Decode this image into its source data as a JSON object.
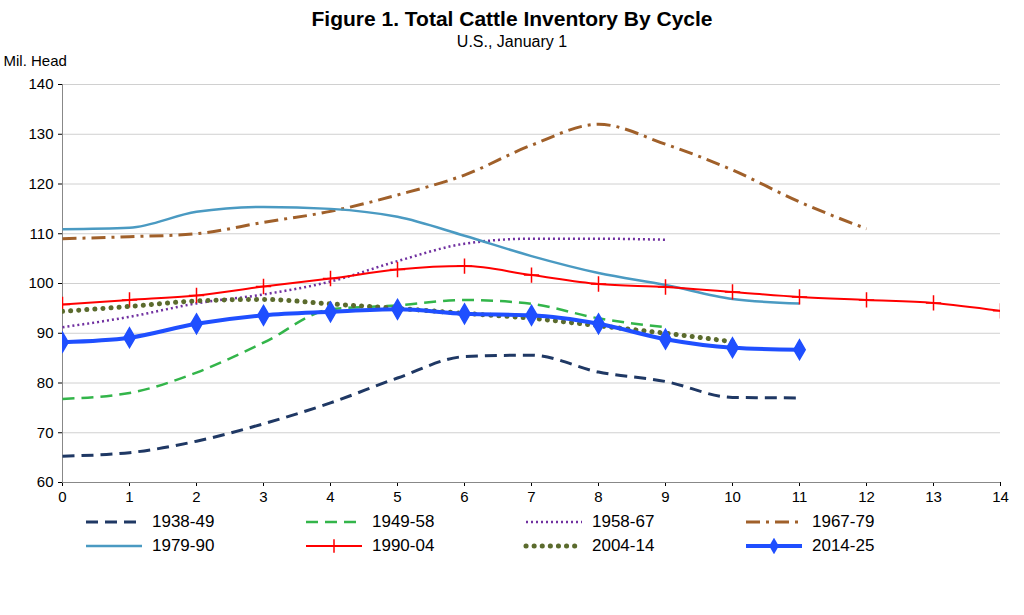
{
  "chart_data": {
    "type": "line",
    "title": "Figure 1. Total Cattle Inventory By Cycle",
    "subtitle": "U.S., January 1",
    "y_label": "Mil. Head",
    "x": [
      0,
      1,
      2,
      3,
      4,
      5,
      6,
      7,
      8,
      9,
      10,
      11,
      12,
      13,
      14
    ],
    "xlim": [
      0,
      14
    ],
    "xticks": [
      0,
      1,
      2,
      3,
      4,
      5,
      6,
      7,
      8,
      9,
      10,
      11,
      12,
      13,
      14
    ],
    "ylim": [
      60,
      140
    ],
    "yticks": [
      60,
      70,
      80,
      90,
      100,
      110,
      120,
      130,
      140
    ],
    "grid": true,
    "legend": "bottom",
    "series": [
      {
        "name": "1938-49",
        "color": "#1f3864",
        "line_style": "dashed",
        "marker": "none",
        "values": [
          65.3,
          66,
          68.3,
          71.8,
          76,
          81,
          85.3,
          85.6,
          82.2,
          80.3,
          77.1,
          77,
          null,
          null,
          null
        ]
      },
      {
        "name": "1949-58",
        "color": "#33b54a",
        "line_style": "dashed",
        "marker": "none",
        "values": [
          76.8,
          78,
          82.1,
          88.1,
          94.8,
          95.6,
          96.7,
          95.9,
          93,
          91.2,
          null,
          null,
          null,
          null,
          null
        ]
      },
      {
        "name": "1958-67",
        "color": "#7030a0",
        "line_style": "dotted",
        "marker": "none",
        "values": [
          91.2,
          93.3,
          96,
          97.8,
          100.4,
          104.5,
          108,
          109,
          109,
          108.8,
          null,
          null,
          null,
          null,
          null
        ]
      },
      {
        "name": "1967-79",
        "color": "#a0602a",
        "line_style": "dashdot",
        "marker": "none",
        "values": [
          109,
          109.4,
          110,
          112.3,
          114.5,
          117.8,
          121.8,
          127.8,
          132,
          128,
          122.8,
          116.4,
          111,
          null,
          null
        ]
      },
      {
        "name": "1979-90",
        "color": "#4a9ac2",
        "line_style": "solid",
        "marker": "none",
        "values": [
          110.9,
          111.2,
          114.4,
          115.4,
          115,
          113.4,
          109.6,
          105.5,
          102.1,
          99.7,
          96.9,
          96,
          null,
          null,
          null
        ]
      },
      {
        "name": "1990-04",
        "color": "#ff0000",
        "line_style": "solid",
        "marker": "plus",
        "values": [
          95.8,
          96.7,
          97.6,
          99.4,
          101,
          102.8,
          103.5,
          101.7,
          99.9,
          99.3,
          98.3,
          97.3,
          96.7,
          96.1,
          94.5
        ]
      },
      {
        "name": "2004-14",
        "color": "#5b6b2d",
        "line_style": "dots",
        "marker": "none",
        "values": [
          94.4,
          95.4,
          96.5,
          96.8,
          95.9,
          95,
          94,
          93,
          91.5,
          90,
          88.3,
          null,
          null,
          null,
          null
        ]
      },
      {
        "name": "2014-25",
        "color": "#1f4fff",
        "line_style": "solid",
        "marker": "diamond",
        "values": [
          88.2,
          89.1,
          91.9,
          93.6,
          94.3,
          94.8,
          93.9,
          93.6,
          91.9,
          88.8,
          87.1,
          86.7,
          null,
          null,
          null
        ]
      }
    ]
  }
}
